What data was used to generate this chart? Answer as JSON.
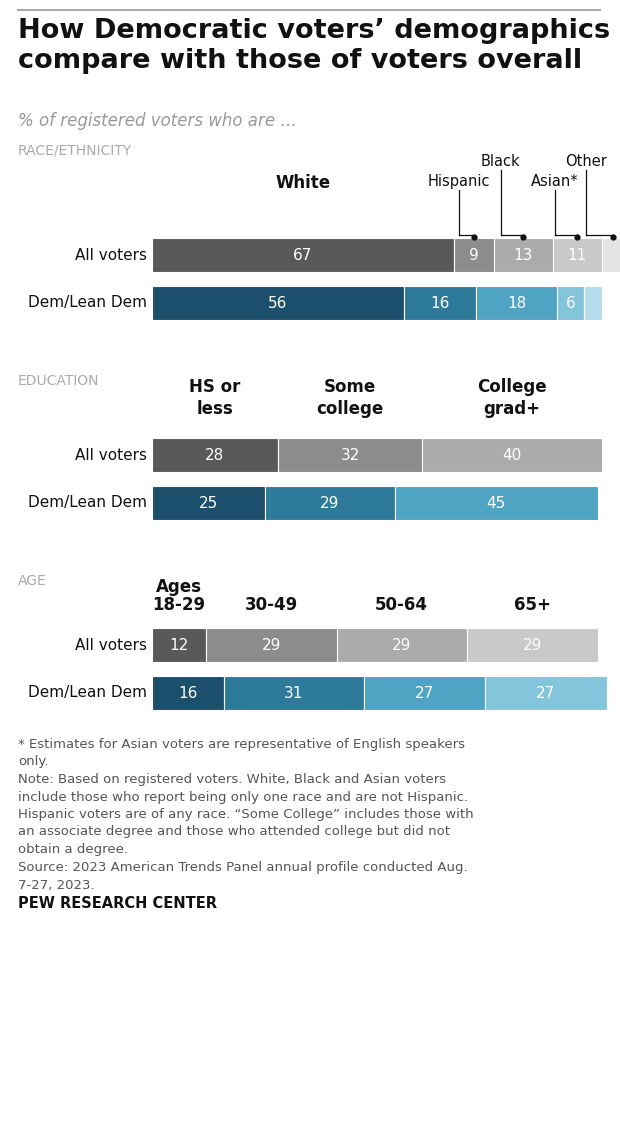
{
  "title": "How Democratic voters’ demographics\ncompare with those of voters overall",
  "subtitle": "% of registered voters who are …",
  "race_section_label": "RACE/ETHNICITY",
  "race_all_voters": [
    67,
    9,
    13,
    11,
    5
  ],
  "race_dem": [
    56,
    16,
    18,
    6,
    4
  ],
  "edu_section_label": "EDUCATION",
  "edu_col_labels": [
    "HS or\nless",
    "Some\ncollege",
    "College\ngrad+"
  ],
  "edu_all_voters": [
    28,
    32,
    40
  ],
  "edu_dem": [
    25,
    29,
    45
  ],
  "age_section_label": "AGE",
  "age_col_labels_line1": [
    "Ages",
    "",
    "",
    ""
  ],
  "age_col_labels_line2": [
    "18-29",
    "30-49",
    "50-64",
    "65+"
  ],
  "age_all_voters": [
    12,
    29,
    29,
    29
  ],
  "age_dem": [
    16,
    31,
    27,
    27
  ],
  "colors_all": [
    "#595959",
    "#8c8c8c",
    "#ababab",
    "#c9c9c9",
    "#e3e3e3"
  ],
  "colors_dem": [
    "#1b4f6b",
    "#2d7a9a",
    "#4fa3c3",
    "#85c5dc",
    "#b5dcec"
  ],
  "note1": "* Estimates for Asian voters are representative of English speakers\nonly.",
  "note2": "Note: Based on registered voters. White, Black and Asian voters\ninclude those who report being only one race and are not Hispanic.\nHispanic voters are of any race. “Some College” includes those with\nan associate degree and those who attended college but did not\nobtain a degree.",
  "source": "Source: 2023 American Trends Panel annual profile conducted Aug.\n7-27, 2023.",
  "branding": "PEW RESEARCH CENTER",
  "bg_color": "#ffffff",
  "section_label_color": "#aaaaaa",
  "note_color": "#555555",
  "label_color_dark": "#333333"
}
